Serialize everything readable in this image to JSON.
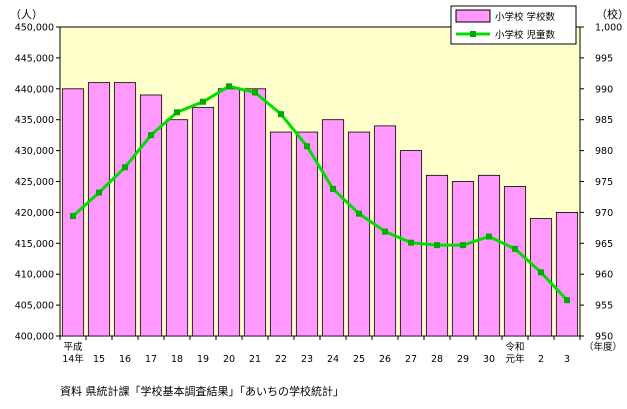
{
  "chart_data": {
    "type": "bar+line",
    "left_unit": "（人）",
    "right_unit": "（校）",
    "x_unit": "（年度）",
    "categories": [
      [
        "平成",
        "14年"
      ],
      [
        "15"
      ],
      [
        "16"
      ],
      [
        "17"
      ],
      [
        "18"
      ],
      [
        "19"
      ],
      [
        "20"
      ],
      [
        "21"
      ],
      [
        "22"
      ],
      [
        "23"
      ],
      [
        "24"
      ],
      [
        "25"
      ],
      [
        "26"
      ],
      [
        "27"
      ],
      [
        "28"
      ],
      [
        "29"
      ],
      [
        "30"
      ],
      [
        "令和",
        "元年"
      ],
      [
        "2"
      ],
      [
        "3"
      ]
    ],
    "y_left": {
      "min": 400000,
      "max": 450000,
      "step": 5000,
      "tick_labels": [
        "400,000",
        "405,000",
        "410,000",
        "415,000",
        "420,000",
        "425,000",
        "430,000",
        "435,000",
        "440,000",
        "445,000",
        "450,000"
      ]
    },
    "y_right": {
      "min": 950,
      "max": 1000,
      "step": 5,
      "tick_labels": [
        "950",
        "955",
        "960",
        "965",
        "970",
        "975",
        "980",
        "985",
        "990",
        "995",
        "1,000"
      ]
    },
    "series": [
      {
        "name": "小学校 学校数",
        "type": "bar",
        "axis": "left",
        "color": "#ff99ff",
        "values": [
          440000,
          441000,
          441000,
          439000,
          435000,
          437000,
          440000,
          440000,
          433000,
          433000,
          435000,
          433000,
          434000,
          430000,
          426000,
          425000,
          426000,
          424200,
          419000,
          420000
        ]
      },
      {
        "name": "小学校 児童数",
        "type": "line",
        "axis": "right",
        "color": "#00dd00",
        "values": [
          969.4,
          973.2,
          977.3,
          982.5,
          986.2,
          987.9,
          990.4,
          989.4,
          985.9,
          980.7,
          973.8,
          969.8,
          966.9,
          965.1,
          964.7,
          964.7,
          966.1,
          964.1,
          960.3,
          955.8
        ]
      }
    ],
    "grid": false,
    "legend": "top-right",
    "plot_background": "#ffffcc",
    "source": "資料  県統計課「学校基本調査結果」「あいちの学校統計」"
  }
}
